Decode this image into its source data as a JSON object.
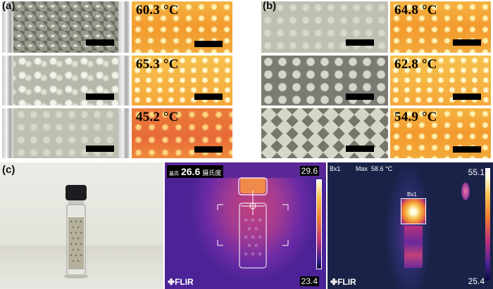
{
  "panels": {
    "a": {
      "label": "(a)",
      "temperatures": [
        "60.3 °C",
        "65.3 °C",
        "45.2 °C"
      ]
    },
    "b": {
      "label": "(b)",
      "temperatures": [
        "64.8 °C",
        "62.8 °C",
        "54.9 °C"
      ]
    },
    "c": {
      "label": "(c)",
      "camera1": {
        "prefix": "最高",
        "value": "26.6",
        "unit": "摄氏度",
        "scale_max": "29.6",
        "scale_min": "23.4",
        "brand": "FLIR"
      },
      "camera2": {
        "box_name": "Bx1",
        "max_label": "Max",
        "max_value": "58.6 °C",
        "scale_max": "55.1",
        "scale_min": "25.4",
        "brand": "FLIR"
      }
    }
  },
  "colors": {
    "thermal_bright": "#f7c04d",
    "thermal_mid": "#f39a2e",
    "thermal_cool": "#e86a36",
    "ir_dark": "#1a2248"
  }
}
